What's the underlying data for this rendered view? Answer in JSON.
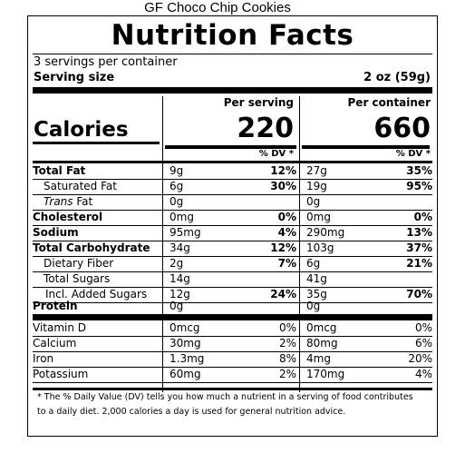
{
  "product_name": "GF Choco Chip Cookies",
  "title": "Nutrition Facts",
  "servings_per_container": "3 servings per container",
  "serving_size_label": "Serving size",
  "serving_size_value": "2 oz (59g)",
  "col_per_serving": "Per serving",
  "col_per_container": "Per container",
  "calories_label": "Calories",
  "calories_serving": "220",
  "calories_container": "660",
  "dv_header": "% DV *",
  "nutrients": [
    {
      "name": "Total Fat",
      "serv_amt": "9g",
      "serv_dv": "12%",
      "cont_amt": "27g",
      "cont_dv": "35%"
    },
    {
      "name": "Saturated Fat",
      "serv_amt": "6g",
      "serv_dv": "30%",
      "cont_amt": "19g",
      "cont_dv": "95%"
    },
    {
      "name_italic": "Trans",
      "name_rest": " Fat",
      "serv_amt": "0g",
      "serv_dv": "",
      "cont_amt": "0g",
      "cont_dv": ""
    },
    {
      "name": "Cholesterol",
      "serv_amt": "0mg",
      "serv_dv": "0%",
      "cont_amt": "0mg",
      "cont_dv": "0%"
    },
    {
      "name": "Sodium",
      "serv_amt": "95mg",
      "serv_dv": "4%",
      "cont_amt": "290mg",
      "cont_dv": "13%"
    },
    {
      "name": "Total Carbohydrate",
      "serv_amt": "34g",
      "serv_dv": "12%",
      "cont_amt": "103g",
      "cont_dv": "37%"
    },
    {
      "name": "Dietary Fiber",
      "serv_amt": "2g",
      "serv_dv": "7%",
      "cont_amt": "6g",
      "cont_dv": "21%"
    },
    {
      "name": "Total Sugars",
      "serv_amt": "14g",
      "serv_dv": "",
      "cont_amt": "41g",
      "cont_dv": ""
    },
    {
      "name": "Incl. Added Sugars",
      "serv_amt": "12g",
      "serv_dv": "24%",
      "cont_amt": "35g",
      "cont_dv": "70%"
    },
    {
      "name": "Protein",
      "serv_amt": "0g",
      "serv_dv": "",
      "cont_amt": "0g",
      "cont_dv": ""
    }
  ],
  "vitamins": [
    {
      "name": "Vitamin D",
      "serv_amt": "0mcg",
      "serv_dv": "0%",
      "cont_amt": "0mcg",
      "cont_dv": "0%"
    },
    {
      "name": "Calcium",
      "serv_amt": "30mg",
      "serv_dv": "2%",
      "cont_amt": "80mg",
      "cont_dv": "6%"
    },
    {
      "name": "Iron",
      "serv_amt": "1.3mg",
      "serv_dv": "8%",
      "cont_amt": "4mg",
      "cont_dv": "20%"
    },
    {
      "name": "Potassium",
      "serv_amt": "60mg",
      "serv_dv": "2%",
      "cont_amt": "170mg",
      "cont_dv": "4%"
    }
  ],
  "footnote": "* The % Daily Value (DV) tells you how much a nutrient in a serving of food contributes to a daily diet. 2,000 calories a day is used for general nutrition advice."
}
